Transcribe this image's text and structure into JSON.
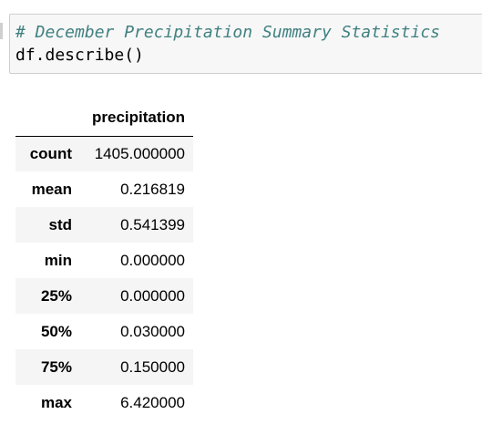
{
  "code_cell": {
    "lines": [
      "# December Precipitation Summary Statistics",
      "df.describe()"
    ]
  },
  "output_table": {
    "index_header": "",
    "column_header": "precipitation",
    "rows": [
      {
        "label": "count",
        "value": "1405.000000"
      },
      {
        "label": "mean",
        "value": "0.216819"
      },
      {
        "label": "std",
        "value": "0.541399"
      },
      {
        "label": "min",
        "value": "0.000000"
      },
      {
        "label": "25%",
        "value": "0.000000"
      },
      {
        "label": "50%",
        "value": "0.030000"
      },
      {
        "label": "75%",
        "value": "0.150000"
      },
      {
        "label": "max",
        "value": "6.420000"
      }
    ]
  },
  "colors": {
    "comment": "#408080",
    "cell_background": "#f7f7f7",
    "cell_border": "#cfcfcf",
    "row_stripe": "#f5f5f5"
  }
}
